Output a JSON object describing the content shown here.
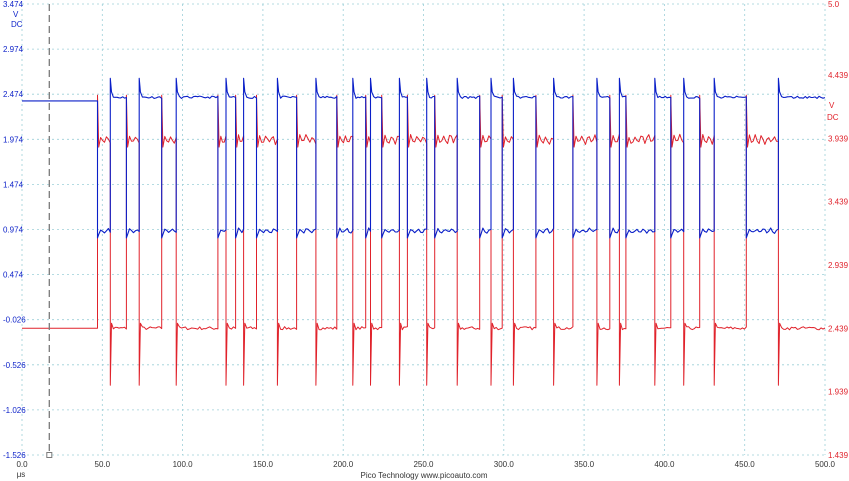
{
  "colors": {
    "channel_a": "#0a1fc8",
    "channel_b": "#e0222b",
    "grid": "#9ccfd8",
    "axis_text_x": "#333333",
    "trigger": "#7a7a7a"
  },
  "footer": {
    "credit": "Pico Technology  www.picoauto.com"
  },
  "chart_data": {
    "type": "line",
    "title": "",
    "xlabel": "μs",
    "xlim": [
      0,
      500
    ],
    "x_ticks": [
      "0.0",
      "50.0",
      "100.0",
      "150.0",
      "200.0",
      "250.0",
      "300.0",
      "350.0",
      "400.0",
      "450.0",
      "500.0"
    ],
    "trigger_time": 17,
    "grid": true,
    "left_axis": {
      "unit_line1": "V",
      "unit_line2": "DC",
      "ylim": [
        -1.526,
        3.474
      ],
      "ticks": [
        "3.474",
        "2.974",
        "2.474",
        "1.974",
        "1.474",
        "0.974",
        "0.474",
        "-0.026",
        "-0.526",
        "-1.026",
        "-1.526"
      ]
    },
    "right_axis": {
      "unit_line1": "V",
      "unit_line2": "DC",
      "ylim": [
        1.439,
        5.0
      ],
      "ticks": [
        "5.0",
        "4.439",
        "3.939",
        "3.439",
        "2.939",
        "2.439",
        "1.939",
        "1.439"
      ]
    },
    "series": [
      {
        "channel": "A",
        "axis": "left",
        "high_level": 2.44,
        "low_level": 0.96,
        "initial_level": 2.4,
        "first_edge": 47,
        "ringing_high": 2.65
      },
      {
        "channel": "B",
        "axis": "right",
        "high_level": 3.93,
        "low_level": 2.44,
        "initial_level": 2.44,
        "first_edge": 47,
        "spike_low": 1.99
      }
    ],
    "segments": [
      [
        47,
        55,
        "L"
      ],
      [
        55,
        65,
        "H"
      ],
      [
        65,
        73,
        "L"
      ],
      [
        73,
        87,
        "H"
      ],
      [
        87,
        96,
        "L"
      ],
      [
        96,
        122,
        "H"
      ],
      [
        122,
        127,
        "L"
      ],
      [
        127,
        133,
        "H"
      ],
      [
        133,
        138,
        "L"
      ],
      [
        138,
        146,
        "H"
      ],
      [
        146,
        159,
        "L"
      ],
      [
        159,
        171,
        "H"
      ],
      [
        171,
        183,
        "L"
      ],
      [
        183,
        196,
        "H"
      ],
      [
        196,
        206,
        "L"
      ],
      [
        206,
        214,
        "H"
      ],
      [
        214,
        217,
        "L"
      ],
      [
        217,
        224,
        "H"
      ],
      [
        224,
        235,
        "L"
      ],
      [
        235,
        240,
        "H"
      ],
      [
        240,
        252,
        "L"
      ],
      [
        252,
        257,
        "H"
      ],
      [
        257,
        271,
        "L"
      ],
      [
        271,
        285,
        "H"
      ],
      [
        285,
        292,
        "L"
      ],
      [
        292,
        299,
        "H"
      ],
      [
        299,
        306,
        "L"
      ],
      [
        306,
        320,
        "H"
      ],
      [
        320,
        331,
        "L"
      ],
      [
        331,
        343,
        "H"
      ],
      [
        343,
        358,
        "L"
      ],
      [
        358,
        366,
        "H"
      ],
      [
        366,
        372,
        "L"
      ],
      [
        372,
        376,
        "H"
      ],
      [
        376,
        394,
        "L"
      ],
      [
        394,
        404,
        "H"
      ],
      [
        404,
        412,
        "L"
      ],
      [
        412,
        422,
        "H"
      ],
      [
        422,
        431,
        "L"
      ],
      [
        431,
        451,
        "H"
      ],
      [
        451,
        471,
        "L"
      ],
      [
        471,
        500,
        "H"
      ]
    ]
  }
}
